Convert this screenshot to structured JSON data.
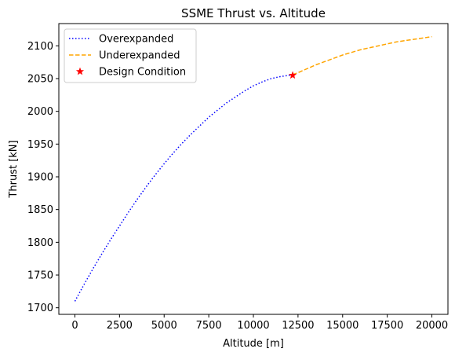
{
  "chart_data": {
    "type": "line",
    "title": "SSME Thrust vs. Altitude",
    "xlabel": "Altitude [m]",
    "ylabel": "Thrust [kN]",
    "xlim": [
      -900,
      20900
    ],
    "ylim": [
      1690,
      2134
    ],
    "xticks": [
      0,
      2500,
      5000,
      7500,
      10000,
      12500,
      15000,
      17500,
      20000
    ],
    "yticks": [
      1700,
      1750,
      1800,
      1850,
      1900,
      1950,
      2000,
      2050,
      2100
    ],
    "grid": false,
    "legend_position": "top-left",
    "series": [
      {
        "name": "Overexpanded",
        "style": "dotted",
        "color": "#0000ff",
        "x": [
          0,
          500,
          1000,
          1500,
          2000,
          2500,
          3000,
          3500,
          4000,
          4500,
          5000,
          5500,
          6000,
          6500,
          7000,
          7500,
          8000,
          8500,
          9000,
          9500,
          10000,
          10500,
          11000,
          11500,
          12000,
          12200
        ],
        "y": [
          1710,
          1735,
          1759,
          1782,
          1804,
          1825,
          1846,
          1866,
          1885,
          1903,
          1920,
          1936,
          1951,
          1965,
          1978,
          1991,
          2002,
          2013,
          2022,
          2031,
          2039,
          2045,
          2050,
          2053,
          2055,
          2056
        ]
      },
      {
        "name": "Underexpanded",
        "style": "dashed",
        "color": "#ffa500",
        "x": [
          12200,
          12500,
          13000,
          13500,
          14000,
          14500,
          15000,
          15500,
          16000,
          16500,
          17000,
          17500,
          18000,
          18500,
          19000,
          19500,
          20000
        ],
        "y": [
          2056,
          2059,
          2065,
          2071,
          2076,
          2081,
          2086,
          2090,
          2094,
          2097,
          2100,
          2103,
          2106,
          2108,
          2110,
          2112,
          2114
        ]
      },
      {
        "name": "Design Condition",
        "style": "marker-star",
        "color": "#ff0000",
        "x": [
          12200
        ],
        "y": [
          2055
        ]
      }
    ]
  }
}
